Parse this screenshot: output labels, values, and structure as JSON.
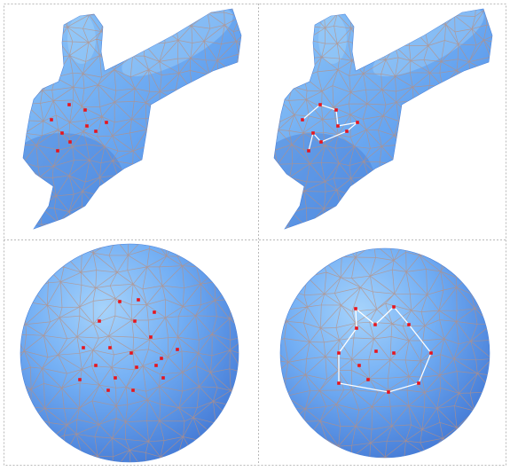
{
  "figure": {
    "layout": "2x2 grid",
    "colors": {
      "background": "#ffffff",
      "panel_border": "#b9b9b9",
      "mesh_light": "#8fc2f7",
      "mesh_mid": "#5f9bee",
      "mesh_dark": "#3f77d4",
      "mesh_edges": "#b98f7d",
      "sample_point": "#e8141c",
      "polyline": "#ffffff"
    },
    "panels": [
      {
        "id": "bunny-points",
        "shape": "bunny-mesh",
        "points_shown": 9,
        "polyline": false
      },
      {
        "id": "bunny-polyline",
        "shape": "bunny-mesh",
        "points_shown": 9,
        "polyline": true
      },
      {
        "id": "sphere-points",
        "shape": "sphere-mesh",
        "points_shown": 15,
        "polyline": false
      },
      {
        "id": "sphere-polyline",
        "shape": "sphere-mesh",
        "points_shown": 15,
        "polyline": true
      }
    ]
  }
}
